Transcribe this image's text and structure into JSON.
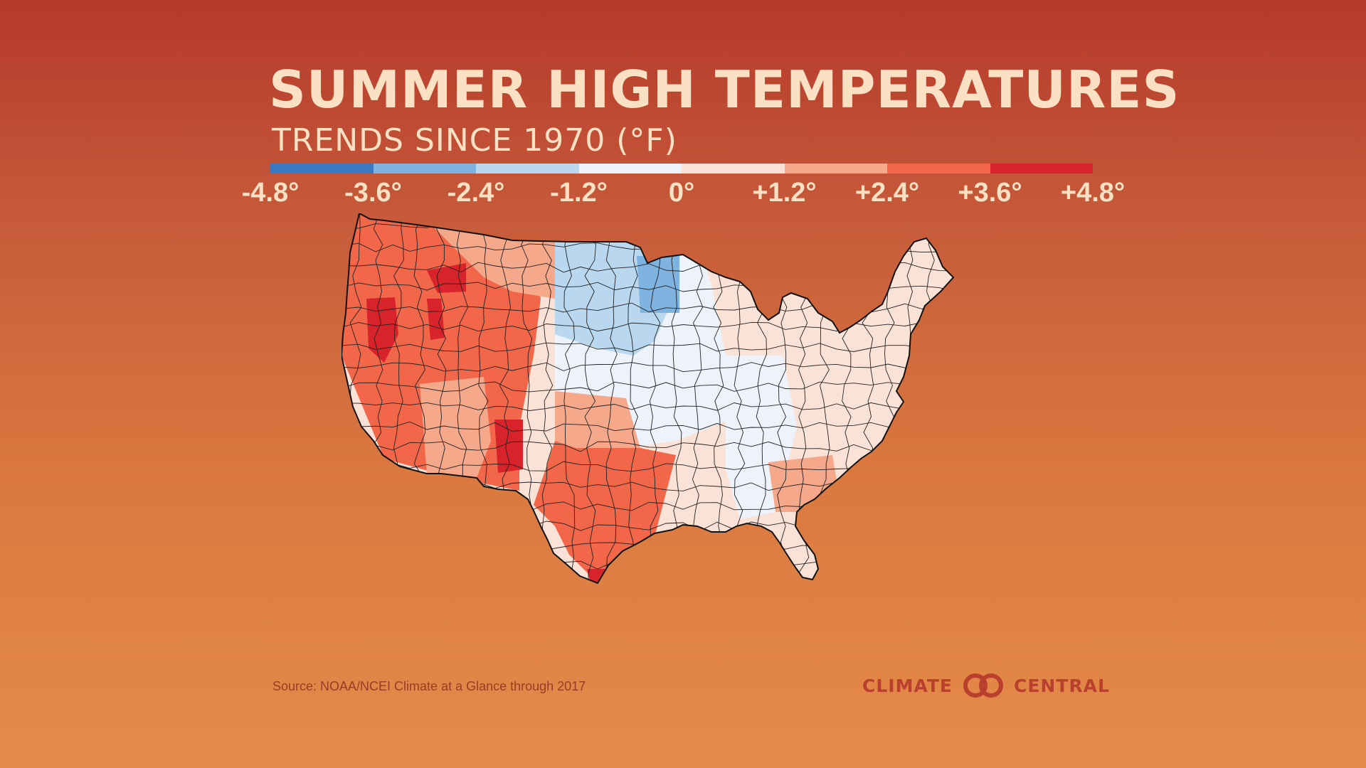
{
  "title": "SUMMER HIGH TEMPERATURES",
  "subtitle": "TRENDS SINCE 1970 (°F)",
  "legend": {
    "colors": [
      "#3b78c2",
      "#7fb3e0",
      "#b9d7ee",
      "#eef3fb",
      "#fbe2d6",
      "#f6a88a",
      "#f2674a",
      "#d9232a"
    ],
    "labels": [
      "-4.8°",
      "-3.6°",
      "-2.4°",
      "-1.2°",
      "0°",
      "+1.2°",
      "+2.4°",
      "+3.6°",
      "+4.8°"
    ]
  },
  "source": "Source: NOAA/NCEI Climate at a Glance through 2017",
  "brand": {
    "left": "CLIMATE",
    "right": "CENTRAL",
    "color": "#b9402c",
    "logo_icon": "infinity-rings-icon"
  },
  "map": {
    "region": "Contiguous United States",
    "colors": {
      "strong_warming": "#d9232a",
      "warming": "#f2674a",
      "mild_warming": "#f6a88a",
      "slight_warming": "#fbe2d6",
      "neutral": "#eef3fb",
      "slight_cooling": "#b9d7ee",
      "cooling": "#7fb3e0"
    }
  }
}
